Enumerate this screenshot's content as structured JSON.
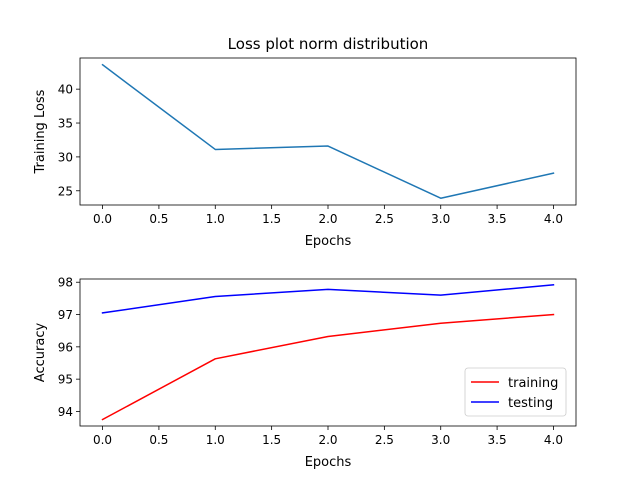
{
  "chart_data": [
    {
      "type": "line",
      "title": "Loss plot norm distribution",
      "xlabel": "Epochs",
      "ylabel": "Training Loss",
      "x": [
        0,
        1,
        2,
        3,
        4
      ],
      "xlim": [
        -0.2,
        4.2
      ],
      "ylim": [
        22.9,
        44.6
      ],
      "xticks": [
        0.0,
        0.5,
        1.0,
        1.5,
        2.0,
        2.5,
        3.0,
        3.5,
        4.0
      ],
      "xtick_labels": [
        "0.0",
        "0.5",
        "1.0",
        "1.5",
        "2.0",
        "2.5",
        "3.0",
        "3.5",
        "4.0"
      ],
      "yticks": [
        25,
        30,
        35,
        40
      ],
      "ytick_labels": [
        "25",
        "30",
        "35",
        "40"
      ],
      "grid": false,
      "series": [
        {
          "values": [
            43.6,
            31.1,
            31.6,
            23.9,
            27.6
          ],
          "color": "#1f77b4"
        }
      ]
    },
    {
      "type": "line",
      "title": "",
      "xlabel": "Epochs",
      "ylabel": "Accuracy",
      "x": [
        0,
        1,
        2,
        3,
        4
      ],
      "xlim": [
        -0.2,
        4.2
      ],
      "ylim": [
        93.55,
        98.1
      ],
      "xticks": [
        0.0,
        0.5,
        1.0,
        1.5,
        2.0,
        2.5,
        3.0,
        3.5,
        4.0
      ],
      "xtick_labels": [
        "0.0",
        "0.5",
        "1.0",
        "1.5",
        "2.0",
        "2.5",
        "3.0",
        "3.5",
        "4.0"
      ],
      "yticks": [
        94,
        95,
        96,
        97,
        98
      ],
      "ytick_labels": [
        "94",
        "95",
        "96",
        "97",
        "98"
      ],
      "grid": false,
      "legend": "lower-right",
      "series": [
        {
          "name": "training",
          "values": [
            93.75,
            95.63,
            96.32,
            96.73,
            97.0
          ],
          "color": "#ff0000"
        },
        {
          "name": "testing",
          "values": [
            97.05,
            97.56,
            97.78,
            97.6,
            97.92
          ],
          "color": "#0000ff"
        }
      ]
    }
  ]
}
